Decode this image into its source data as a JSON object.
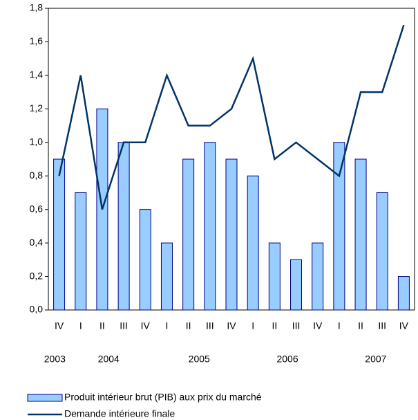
{
  "chart_data": {
    "type": "bar_line",
    "categories": [
      "IV",
      "I",
      "II",
      "III",
      "IV",
      "I",
      "II",
      "III",
      "IV",
      "I",
      "II",
      "III",
      "IV",
      "I",
      "II",
      "III",
      "IV"
    ],
    "years": [
      "2003",
      "2004",
      "2005",
      "2006",
      "2007"
    ],
    "series": [
      {
        "name": "Produit intérieur brut (PIB) aux prix du marché",
        "type": "bar",
        "color": "#99ccff",
        "values": [
          0.9,
          0.7,
          1.2,
          1.0,
          0.6,
          0.4,
          0.9,
          1.0,
          0.9,
          0.8,
          0.4,
          0.3,
          0.4,
          1.0,
          0.9,
          0.7,
          0.2
        ]
      },
      {
        "name": "Demande intérieure finale",
        "type": "line",
        "color": "#003366",
        "values": [
          0.8,
          1.4,
          0.6,
          1.0,
          1.0,
          1.4,
          1.1,
          1.1,
          1.2,
          1.5,
          0.9,
          1.0,
          0.9,
          0.8,
          1.3,
          1.3,
          1.7
        ]
      }
    ],
    "ylim": [
      0,
      1.8
    ],
    "yticks": [
      {
        "value": 0,
        "label": "0,0"
      },
      {
        "value": 0.2,
        "label": "0,2"
      },
      {
        "value": 0.4,
        "label": "0,4"
      },
      {
        "value": 0.6,
        "label": "0,6"
      },
      {
        "value": 0.8,
        "label": "0,8"
      },
      {
        "value": 1.0,
        "label": "1,0"
      },
      {
        "value": 1.2,
        "label": "1,2"
      },
      {
        "value": 1.4,
        "label": "1,4"
      },
      {
        "value": 1.6,
        "label": "1,6"
      },
      {
        "value": 1.8,
        "label": "1,8"
      }
    ]
  }
}
